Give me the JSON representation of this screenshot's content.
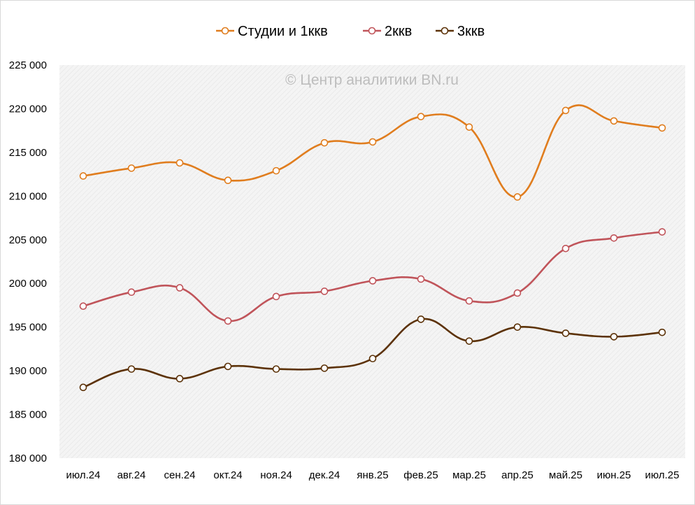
{
  "chart_data": {
    "type": "line",
    "title": "",
    "xlabel": "",
    "ylabel": "",
    "watermark": "© Центр аналитики BN.ru",
    "categories": [
      "июл.24",
      "авг.24",
      "сен.24",
      "окт.24",
      "ноя.24",
      "дек.24",
      "янв.25",
      "фев.25",
      "мар.25",
      "апр.25",
      "май.25",
      "июн.25",
      "июл.25"
    ],
    "ylim": [
      180000,
      225000
    ],
    "yticks": [
      180000,
      185000,
      190000,
      195000,
      200000,
      205000,
      210000,
      215000,
      220000,
      225000
    ],
    "ytick_labels": [
      "180 000",
      "185 000",
      "190 000",
      "195 000",
      "200 000",
      "205 000",
      "210 000",
      "215 000",
      "220 000",
      "225 000"
    ],
    "legend_position": "top",
    "grid": "hatched background",
    "series": [
      {
        "name": "Студии и 1ккв",
        "color": "#e07d1e",
        "values": [
          212300,
          213200,
          213800,
          211800,
          212900,
          216100,
          216200,
          219100,
          217900,
          209900,
          219800,
          218600,
          217800
        ]
      },
      {
        "name": "2ккв",
        "color": "#c0545a",
        "values": [
          197400,
          199000,
          199500,
          195700,
          198500,
          199100,
          200300,
          200500,
          198000,
          198900,
          204000,
          205200,
          205900
        ]
      },
      {
        "name": "3ккв",
        "color": "#5c3208",
        "values": [
          188100,
          190200,
          189100,
          190500,
          190200,
          190300,
          191400,
          195900,
          193400,
          195000,
          194300,
          193900,
          194400
        ]
      }
    ]
  }
}
